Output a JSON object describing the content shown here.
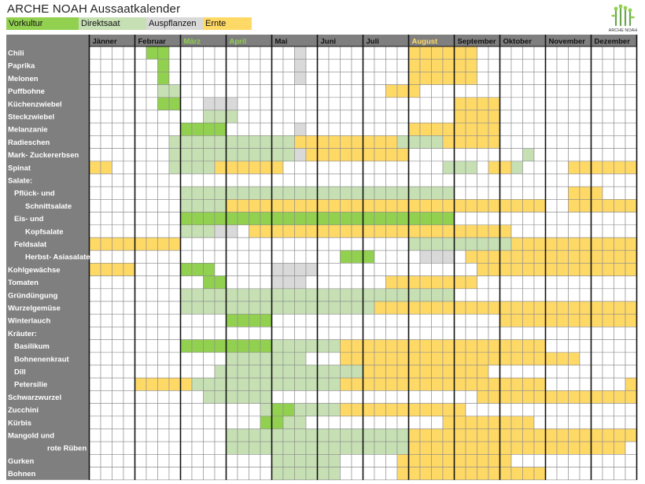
{
  "title": "ARCHE NOAH Aussaatkalender",
  "logo_text": "ARCHE NOAH",
  "legend": [
    {
      "label": "Vorkultur",
      "color": "#92d050"
    },
    {
      "label": "Direktsaat",
      "color": "#c6e0b4"
    },
    {
      "label": "Auspflanzen",
      "color": "#d9d9d9"
    },
    {
      "label": "Ernte",
      "color": "#ffd966"
    }
  ],
  "colors": {
    "V": "#92d050",
    "D": "#c6e0b4",
    "A": "#d9d9d9",
    "E": "#ffd966",
    "label_bg": "#7f7f7f",
    "empty": "#ffffff"
  },
  "chart_data": {
    "type": "table",
    "weeks_per_month": 4,
    "months": [
      {
        "name": "Jänner",
        "color": "#000000"
      },
      {
        "name": "Februar",
        "color": "#000000"
      },
      {
        "name": "März",
        "color": "#92d050"
      },
      {
        "name": "April",
        "color": "#92d050"
      },
      {
        "name": "Mai",
        "color": "#000000"
      },
      {
        "name": "Juni",
        "color": "#000000"
      },
      {
        "name": "Juli",
        "color": "#000000"
      },
      {
        "name": "August",
        "color": "#ffd966"
      },
      {
        "name": "September",
        "color": "#000000"
      },
      {
        "name": "Oktober",
        "color": "#000000"
      },
      {
        "name": "November",
        "color": "#000000"
      },
      {
        "name": "Dezember",
        "color": "#000000"
      }
    ],
    "rows": [
      {
        "label": "Chili",
        "indent": 0,
        "spans": [
          [
            "V",
            5,
            6
          ],
          [
            "A",
            18,
            18
          ],
          [
            "E",
            28,
            33
          ]
        ]
      },
      {
        "label": "Paprika",
        "indent": 0,
        "spans": [
          [
            "V",
            6,
            6
          ],
          [
            "A",
            18,
            18
          ],
          [
            "E",
            28,
            33
          ]
        ]
      },
      {
        "label": "Melonen",
        "indent": 0,
        "spans": [
          [
            "V",
            6,
            6
          ],
          [
            "A",
            18,
            18
          ],
          [
            "E",
            28,
            33
          ]
        ]
      },
      {
        "label": "Puffbohne",
        "indent": 0,
        "spans": [
          [
            "D",
            6,
            7
          ],
          [
            "E",
            26,
            28
          ]
        ]
      },
      {
        "label": "Küchenzwiebel",
        "indent": 0,
        "spans": [
          [
            "V",
            6,
            7
          ],
          [
            "A",
            10,
            12
          ],
          [
            "E",
            32,
            35
          ]
        ]
      },
      {
        "label": "Steckzwiebel",
        "indent": 0,
        "spans": [
          [
            "D",
            10,
            12
          ],
          [
            "E",
            32,
            35
          ]
        ]
      },
      {
        "label": "Melanzanie",
        "indent": 0,
        "spans": [
          [
            "V",
            8,
            11
          ],
          [
            "A",
            18,
            18
          ],
          [
            "E",
            28,
            35
          ]
        ]
      },
      {
        "label": "Radieschen",
        "indent": 0,
        "spans": [
          [
            "D",
            7,
            17
          ],
          [
            "E",
            18,
            26
          ],
          [
            "D",
            27,
            30
          ],
          [
            "E",
            31,
            35
          ]
        ]
      },
      {
        "label": "Mark- Zuckererbsen",
        "indent": 0,
        "spans": [
          [
            "D",
            7,
            17
          ],
          [
            "A",
            18,
            18
          ],
          [
            "E",
            19,
            27
          ],
          [
            "D",
            38,
            38
          ]
        ]
      },
      {
        "label": "Spinat",
        "indent": 0,
        "spans": [
          [
            "E",
            0,
            1
          ],
          [
            "D",
            7,
            10
          ],
          [
            "E",
            11,
            16
          ],
          [
            "D",
            31,
            33
          ],
          [
            "E",
            35,
            36
          ],
          [
            "D",
            37,
            37
          ],
          [
            "E",
            42,
            47
          ]
        ]
      },
      {
        "label": "Salate:",
        "indent": 0,
        "spans": []
      },
      {
        "label": "Pflück- und",
        "indent": 1,
        "spans": [
          [
            "D",
            8,
            31
          ],
          [
            "E",
            42,
            44
          ]
        ]
      },
      {
        "label": "Schnittsalate",
        "indent": 2,
        "spans": [
          [
            "D",
            8,
            31
          ],
          [
            "E",
            12,
            39
          ],
          [
            "E",
            42,
            47
          ]
        ]
      },
      {
        "label": "Eis- und",
        "indent": 1,
        "spans": [
          [
            "V",
            8,
            31
          ]
        ]
      },
      {
        "label": "Kopfsalate",
        "indent": 2,
        "spans": [
          [
            "D",
            8,
            10
          ],
          [
            "A",
            11,
            12
          ],
          [
            "E",
            14,
            36
          ]
        ]
      },
      {
        "label": "Feldsalat",
        "indent": 1,
        "spans": [
          [
            "E",
            0,
            7
          ],
          [
            "D",
            28,
            36
          ],
          [
            "E",
            37,
            47
          ]
        ]
      },
      {
        "label": "Herbst- Asiasalate",
        "indent": 2,
        "spans": [
          [
            "V",
            22,
            24
          ],
          [
            "A",
            29,
            31
          ],
          [
            "E",
            33,
            47
          ]
        ]
      },
      {
        "label": "Kohlgewächse",
        "indent": 0,
        "spans": [
          [
            "E",
            0,
            3
          ],
          [
            "V",
            8,
            10
          ],
          [
            "A",
            16,
            19
          ],
          [
            "E",
            34,
            47
          ]
        ]
      },
      {
        "label": "Tomaten",
        "indent": 0,
        "spans": [
          [
            "V",
            10,
            11
          ],
          [
            "A",
            16,
            18
          ],
          [
            "E",
            26,
            33
          ]
        ]
      },
      {
        "label": "Gründüngung",
        "indent": 0,
        "spans": [
          [
            "D",
            8,
            31
          ]
        ]
      },
      {
        "label": "Wurzelgemüse",
        "indent": 0,
        "spans": [
          [
            "D",
            8,
            24
          ],
          [
            "E",
            25,
            47
          ]
        ]
      },
      {
        "label": "Winterlauch",
        "indent": 0,
        "spans": [
          [
            "V",
            12,
            15
          ],
          [
            "E",
            36,
            47
          ]
        ]
      },
      {
        "label": "Kräuter:",
        "indent": 0,
        "spans": []
      },
      {
        "label": "Basilikum",
        "indent": 1,
        "spans": [
          [
            "V",
            8,
            15
          ],
          [
            "D",
            16,
            21
          ],
          [
            "E",
            22,
            39
          ]
        ]
      },
      {
        "label": "Bohnenenkraut",
        "indent": 1,
        "spans": [
          [
            "D",
            12,
            18
          ],
          [
            "E",
            22,
            42
          ]
        ]
      },
      {
        "label": "Dill",
        "indent": 1,
        "spans": [
          [
            "D",
            11,
            23
          ],
          [
            "E",
            24,
            34
          ]
        ]
      },
      {
        "label": "Petersilie",
        "indent": 1,
        "spans": [
          [
            "E",
            4,
            8
          ],
          [
            "D",
            9,
            21
          ],
          [
            "E",
            22,
            39
          ],
          [
            "E",
            47,
            47
          ]
        ]
      },
      {
        "label": "Schwarzwurzel",
        "indent": 0,
        "spans": [
          [
            "D",
            10,
            15
          ],
          [
            "E",
            34,
            47
          ]
        ]
      },
      {
        "label": "Zucchini",
        "indent": 0,
        "spans": [
          [
            "D",
            15,
            15
          ],
          [
            "V",
            16,
            17
          ],
          [
            "D",
            18,
            21
          ],
          [
            "E",
            22,
            32
          ]
        ]
      },
      {
        "label": "Kürbis",
        "indent": 0,
        "spans": [
          [
            "D",
            15,
            15
          ],
          [
            "V",
            15,
            16
          ],
          [
            "D",
            17,
            18
          ],
          [
            "E",
            31,
            38
          ]
        ]
      },
      {
        "label": "Mangold und",
        "indent": 0,
        "spans": [
          [
            "D",
            12,
            27
          ],
          [
            "E",
            28,
            47
          ]
        ]
      },
      {
        "label": "rote Rüben",
        "indent": 3,
        "spans": [
          [
            "D",
            12,
            27
          ],
          [
            "E",
            28,
            46
          ]
        ]
      },
      {
        "label": "Gurken",
        "indent": 0,
        "spans": [
          [
            "D",
            16,
            21
          ],
          [
            "E",
            27,
            36
          ]
        ]
      },
      {
        "label": "Bohnen",
        "indent": 0,
        "spans": [
          [
            "D",
            16,
            21
          ],
          [
            "E",
            27,
            39
          ]
        ]
      }
    ]
  }
}
